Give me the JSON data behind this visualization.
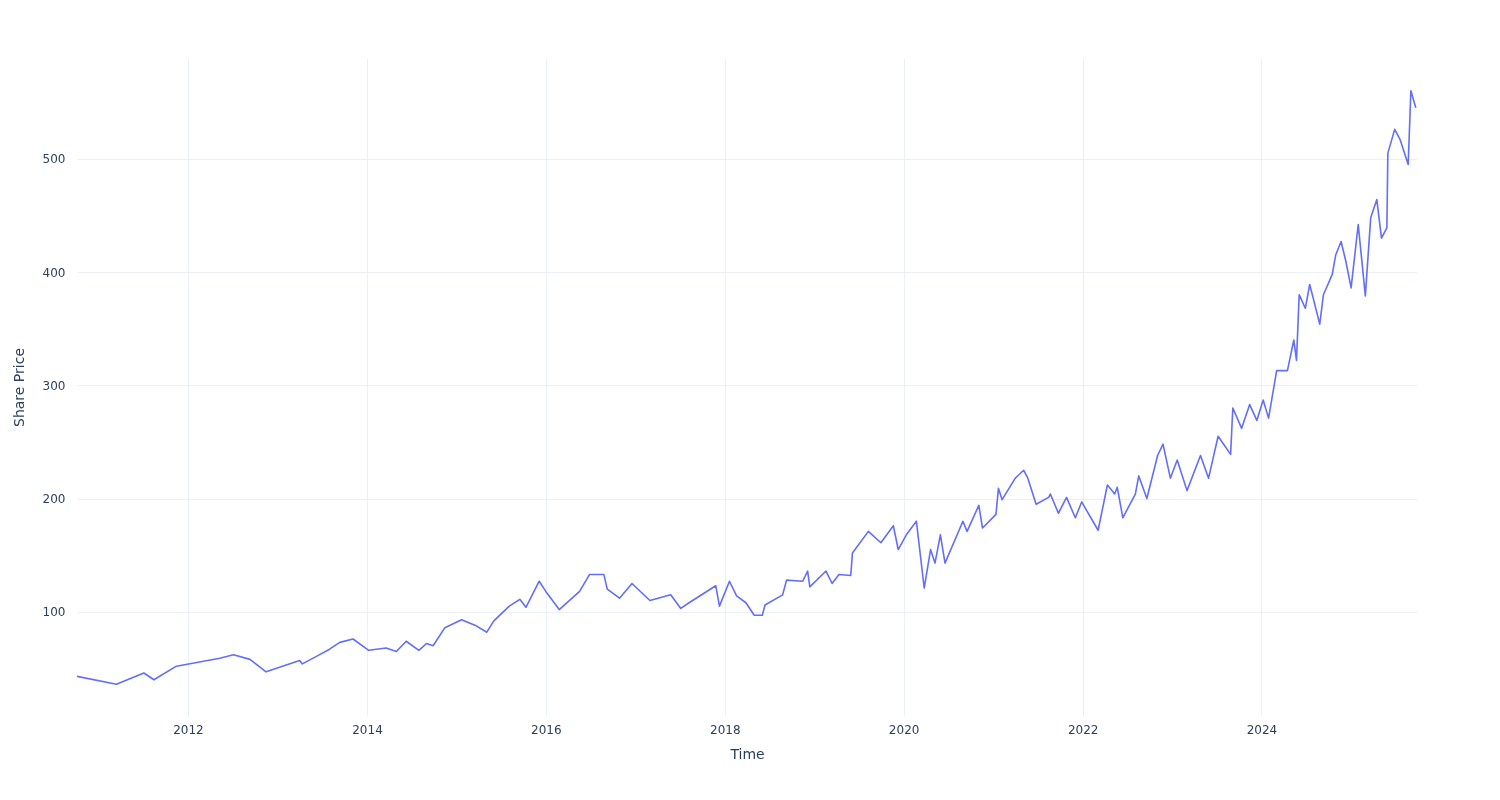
{
  "chart_data": {
    "type": "line",
    "xlabel": "Time",
    "ylabel": "Share Price",
    "xlim": [
      "2010-10-05",
      "2025-09-27"
    ],
    "xticks": [
      "2012",
      "2014",
      "2016",
      "2018",
      "2020",
      "2022",
      "2024"
    ],
    "ylim": [
      8,
      589
    ],
    "yticks": [
      100,
      200,
      300,
      400,
      500
    ],
    "grid": true,
    "marker": "none",
    "line_style": "solid",
    "x": [
      "2010-10-05",
      "2011-03-15",
      "2011-07-05",
      "2011-08-15",
      "2011-11-15",
      "2012-05-10",
      "2012-07-05",
      "2012-09-10",
      "2012-11-15",
      "2013-04-01",
      "2013-04-12",
      "2013-06-20",
      "2013-08-01",
      "2013-09-12",
      "2013-11-05",
      "2014-01-08",
      "2014-03-20",
      "2014-05-01",
      "2014-06-10",
      "2014-08-01",
      "2014-09-01",
      "2014-09-28",
      "2014-11-15",
      "2015-01-22",
      "2015-03-20",
      "2015-05-05",
      "2015-06-03",
      "2015-08-05",
      "2015-09-17",
      "2015-10-12",
      "2015-12-05",
      "2016-01-01",
      "2016-02-25",
      "2016-05-18",
      "2016-06-28",
      "2016-08-25",
      "2016-09-08",
      "2016-10-28",
      "2016-12-18",
      "2017-03-01",
      "2017-05-25",
      "2017-07-05",
      "2017-08-08",
      "2017-11-25",
      "2017-12-10",
      "2018-01-20",
      "2018-02-18",
      "2018-03-28",
      "2018-05-01",
      "2018-06-03",
      "2018-06-14",
      "2018-08-25",
      "2018-09-10",
      "2018-11-15",
      "2018-12-05",
      "2018-12-14",
      "2019-02-18",
      "2019-03-15",
      "2019-04-12",
      "2019-05-30",
      "2019-06-06",
      "2019-08-10",
      "2019-09-30",
      "2019-11-20",
      "2019-12-10",
      "2020-01-12",
      "2020-02-22",
      "2020-03-25",
      "2020-04-20",
      "2020-05-08",
      "2020-05-30",
      "2020-06-18",
      "2020-08-30",
      "2020-09-16",
      "2020-11-03",
      "2020-11-18",
      "2021-01-12",
      "2021-01-22",
      "2021-02-06",
      "2021-04-01",
      "2021-05-05",
      "2021-05-22",
      "2021-06-25",
      "2021-08-15",
      "2021-08-22",
      "2021-09-24",
      "2021-10-27",
      "2021-12-02",
      "2021-12-28",
      "2022-03-05",
      "2022-04-12",
      "2022-05-12",
      "2022-05-22",
      "2022-06-14",
      "2022-08-04",
      "2022-08-18",
      "2022-09-20",
      "2022-11-03",
      "2022-11-25",
      "2022-12-25",
      "2023-01-22",
      "2023-03-03",
      "2023-04-27",
      "2023-05-30",
      "2023-07-08",
      "2023-08-28",
      "2023-09-06",
      "2023-10-12",
      "2023-11-14",
      "2023-12-13",
      "2024-01-08",
      "2024-01-30",
      "2024-03-03",
      "2024-04-16",
      "2024-05-12",
      "2024-05-23",
      "2024-06-03",
      "2024-06-28",
      "2024-07-16",
      "2024-08-26",
      "2024-09-10",
      "2024-10-16",
      "2024-10-30",
      "2024-11-21",
      "2024-12-10",
      "2025-01-01",
      "2025-01-30",
      "2025-02-28",
      "2025-03-22",
      "2025-04-16",
      "2025-05-05",
      "2025-05-27",
      "2025-05-31",
      "2025-06-28",
      "2025-07-20",
      "2025-08-22",
      "2025-09-02",
      "2025-09-22"
    ],
    "series": [
      {
        "color": "#636efa",
        "values": [
          43,
          36,
          46,
          40,
          52,
          59,
          62,
          58,
          47,
          57,
          54,
          62,
          67,
          73,
          76,
          66,
          68,
          65,
          74,
          66,
          72,
          70,
          86,
          93,
          88,
          82,
          92,
          105,
          111,
          104,
          127,
          118,
          102,
          118,
          133,
          133,
          120,
          112,
          125,
          110,
          115,
          103,
          108,
          123,
          105,
          127,
          114,
          108,
          97,
          97,
          106,
          115,
          128,
          127,
          136,
          122,
          136,
          125,
          133,
          132,
          152,
          171,
          161,
          176,
          155,
          168,
          180,
          121,
          155,
          143,
          168,
          143,
          180,
          171,
          194,
          174,
          186,
          209,
          199,
          218,
          225,
          218,
          195,
          201,
          204,
          187,
          201,
          183,
          197,
          172,
          212,
          204,
          210,
          183,
          204,
          220,
          200,
          238,
          248,
          218,
          234,
          207,
          238,
          218,
          255,
          239,
          280,
          262,
          283,
          269,
          287,
          271,
          313,
          313,
          340,
          322,
          380,
          368,
          389,
          354,
          380,
          398,
          415,
          427,
          410,
          386,
          442,
          379,
          448,
          464,
          430,
          439,
          505,
          526,
          517,
          495,
          560,
          545
        ]
      }
    ]
  }
}
